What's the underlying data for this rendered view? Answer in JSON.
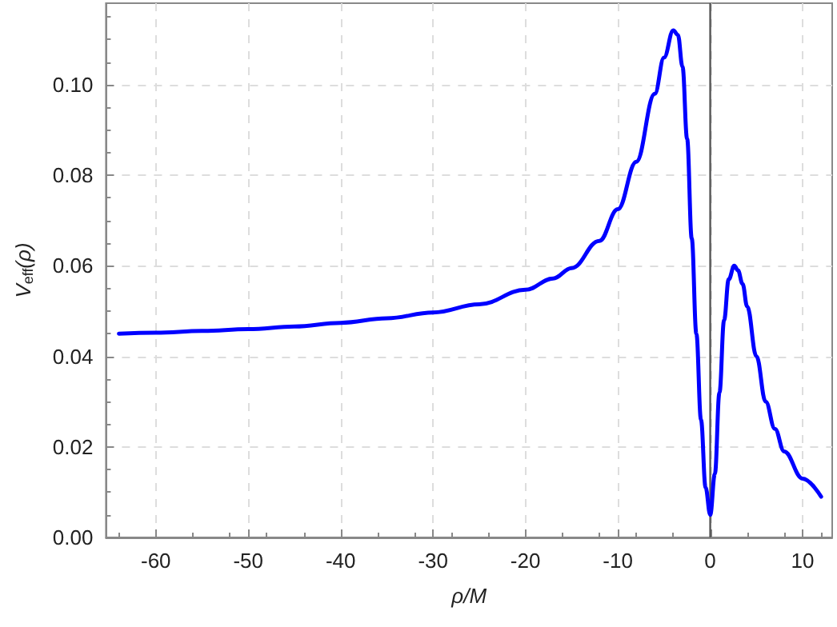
{
  "chart_data": {
    "type": "line",
    "xlabel": "ρ/M",
    "ylabel": "V$_{eff}$(ρ)",
    "x": [
      -64,
      -60,
      -55,
      -50,
      -45,
      -40,
      -35,
      -30,
      -25,
      -20,
      -17,
      -15,
      -12,
      -10,
      -8,
      -6,
      -5,
      -4,
      -3.5,
      -3,
      -2.5,
      -2,
      -1.5,
      -1,
      -0.5,
      0,
      0.5,
      1,
      1.5,
      2,
      2.6,
      3,
      3.5,
      4,
      5,
      6,
      7,
      8,
      10,
      12
    ],
    "series": [
      {
        "color": "#0000ff",
        "values": [
          0.045,
          0.0452,
          0.0456,
          0.046,
          0.0466,
          0.0474,
          0.0484,
          0.0497,
          0.0515,
          0.0547,
          0.0572,
          0.0595,
          0.0655,
          0.0725,
          0.083,
          0.098,
          0.106,
          0.112,
          0.111,
          0.104,
          0.088,
          0.066,
          0.045,
          0.026,
          0.011,
          0.005,
          0.014,
          0.032,
          0.048,
          0.057,
          0.06,
          0.059,
          0.056,
          0.051,
          0.04,
          0.03,
          0.024,
          0.019,
          0.013,
          0.009
        ]
      }
    ],
    "xlim": [
      -65.4,
      13.2
    ],
    "xticks": [
      -60,
      -50,
      -40,
      -30,
      -20,
      -10,
      0,
      10
    ],
    "ylim": [
      0,
      0.118
    ],
    "yticks": [
      {
        "value": 0,
        "label": "0.00"
      },
      {
        "value": 0.02,
        "label": "0.02"
      },
      {
        "value": 0.04,
        "label": "0.04"
      },
      {
        "value": 0.06,
        "label": "0.06"
      },
      {
        "value": 0.08,
        "label": "0.08"
      },
      {
        "value": 0.1,
        "label": "0.10"
      }
    ],
    "ref_lines": [
      {
        "axis": "x",
        "value": 0,
        "color": "#555555"
      }
    ],
    "grid": true,
    "marker": "none",
    "line_style": "solid"
  }
}
